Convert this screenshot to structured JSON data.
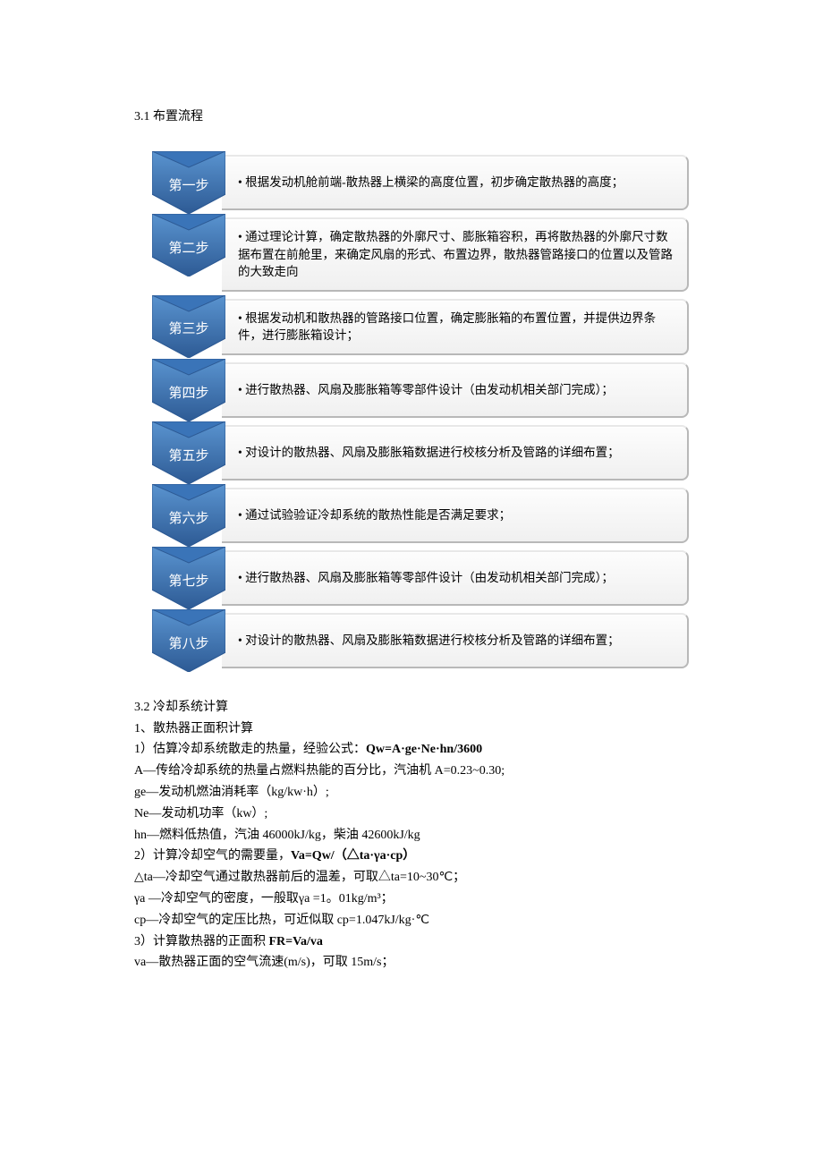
{
  "heading_3_1": "3.1 布置流程",
  "flow": {
    "chevron_fill": "#3a74b8",
    "chevron_stroke": "#2d5a94",
    "steps": [
      {
        "label": "第一步",
        "text": "根据发动机舱前端-散热器上横梁的高度位置，初步确定散热器的高度；"
      },
      {
        "label": "第二步",
        "text": "通过理论计算，确定散热器的外廓尺寸、膨胀箱容积，再将散热器的外廓尺寸数据布置在前舱里，来确定风扇的形式、布置边界，散热器管路接口的位置以及管路的大致走向"
      },
      {
        "label": "第三步",
        "text": "根据发动机和散热器的管路接口位置，确定膨胀箱的布置位置，并提供边界条件，进行膨胀箱设计；"
      },
      {
        "label": "第四步",
        "text": "进行散热器、风扇及膨胀箱等零部件设计（由发动机相关部门完成）；"
      },
      {
        "label": "第五步",
        "text": "对设计的散热器、风扇及膨胀箱数据进行校核分析及管路的详细布置；"
      },
      {
        "label": "第六步",
        "text": "通过试验验证冷却系统的散热性能是否满足要求；"
      },
      {
        "label": "第七步",
        "text": "进行散热器、风扇及膨胀箱等零部件设计（由发动机相关部门完成）；"
      },
      {
        "label": "第八步",
        "text": "对设计的散热器、风扇及膨胀箱数据进行校核分析及管路的详细布置；"
      }
    ]
  },
  "section_3_2": {
    "heading": "3.2  冷却系统计算",
    "item1_title": "1、散热器正面积计算",
    "line1a": "1）估算冷却系统散走的热量，经验公式：",
    "formula1": "Qw=A·ge·Ne·hn/3600",
    "line_A": "A—传给冷却系统的热量占燃料热能的百分比，汽油机 A=0.23~0.30;",
    "line_ge": "ge—发动机燃油消耗率（kg/kw·h）;",
    "line_Ne": "Ne—发动机功率（kw）;",
    "line_hn": "hn—燃料低热值，汽油 46000kJ/kg，柴油 42600kJ/kg",
    "line2a": "2）计算冷却空气的需要量，",
    "formula2": "Va=Qw/（△ta·γa·cp）",
    "line_dta": "△ta—冷却空气通过散热器前后的温差，可取△ta=10~30℃；",
    "line_ga": "γa —冷却空气的密度，一般取γa =1。01kg/m³；",
    "line_cp": "cp—冷却空气的定压比热，可近似取 cp=1.047kJ/kg·℃",
    "line3a": "3）计算散热器的正面积 ",
    "formula3": "FR=Va/va",
    "line_va": "va—散热器正面的空气流速(m/s)，可取 15m/s；"
  }
}
